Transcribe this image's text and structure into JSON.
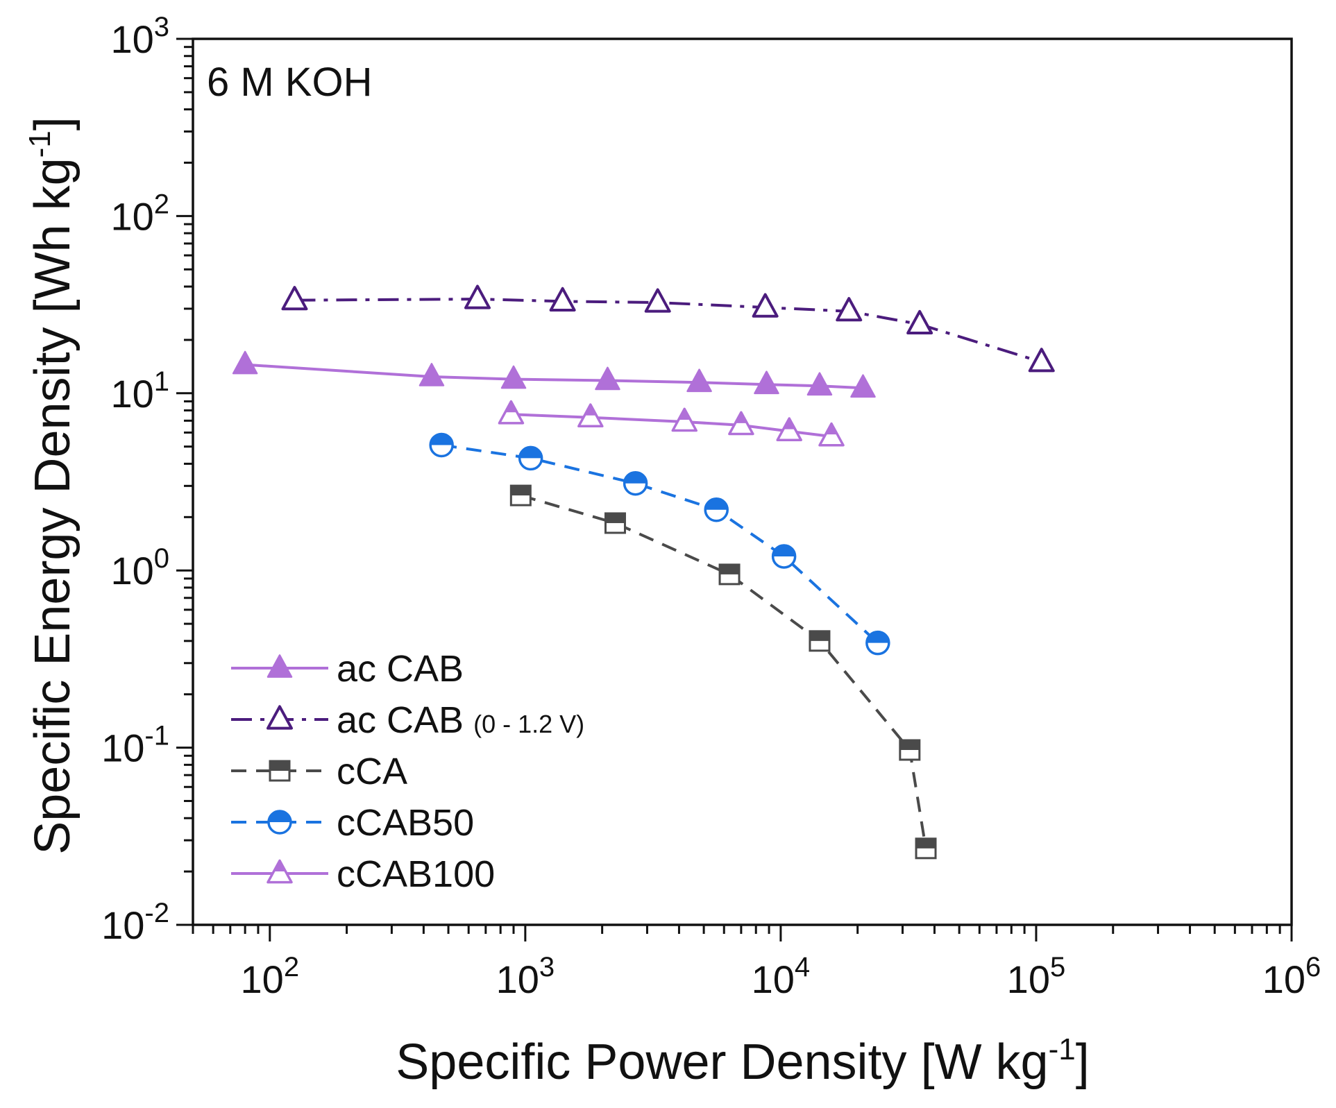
{
  "chart_data": {
    "type": "scatter",
    "xscale": "log",
    "yscale": "log",
    "xlim": [
      50,
      1000000
    ],
    "ylim": [
      0.01,
      1000
    ],
    "xlabel": "Specific Power Density [W kg",
    "xlabel_sup": "-1",
    "xlabel_end": "]",
    "ylabel": "Specific Energy Density [Wh kg",
    "ylabel_sup": "-1",
    "ylabel_end": "]",
    "annotation": "6 M KOH",
    "legend_position": "bottom-left",
    "x_ticks": [
      {
        "value": 100,
        "base": "10",
        "exp": "2"
      },
      {
        "value": 1000,
        "base": "10",
        "exp": "3"
      },
      {
        "value": 10000,
        "base": "10",
        "exp": "4"
      },
      {
        "value": 100000,
        "base": "10",
        "exp": "5"
      },
      {
        "value": 1000000,
        "base": "10",
        "exp": "6"
      }
    ],
    "y_ticks": [
      {
        "value": 0.01,
        "base": "10",
        "exp": "-2"
      },
      {
        "value": 0.1,
        "base": "10",
        "exp": "-1"
      },
      {
        "value": 1,
        "base": "10",
        "exp": "0"
      },
      {
        "value": 10,
        "base": "10",
        "exp": "1"
      },
      {
        "value": 100,
        "base": "10",
        "exp": "2"
      },
      {
        "value": 1000,
        "base": "10",
        "exp": "3"
      }
    ],
    "series": [
      {
        "name": "ac CAB",
        "name_suffix": "",
        "color": "#b070d8",
        "line_style": "solid",
        "marker": "triangle-filled",
        "x": [
          80,
          430,
          900,
          2100,
          4800,
          8800,
          14200,
          21000
        ],
        "y": [
          14.5,
          12.4,
          12.0,
          11.8,
          11.5,
          11.2,
          11.0,
          10.7
        ]
      },
      {
        "name": "ac CAB",
        "name_suffix": "(0 - 1.2 V)",
        "color": "#4b1c7d",
        "line_style": "dashdot",
        "marker": "triangle-open",
        "x": [
          125,
          650,
          1400,
          3300,
          8700,
          18500,
          35000,
          105000
        ],
        "y": [
          33.5,
          34.0,
          33.0,
          32.5,
          30.5,
          29.0,
          24.5,
          15.0
        ]
      },
      {
        "name": "cCA",
        "name_suffix": "",
        "color": "#4a4a4a",
        "line_style": "dashed",
        "marker": "square-half",
        "x": [
          960,
          2250,
          6300,
          14200,
          32000,
          37000
        ],
        "y": [
          2.65,
          1.85,
          0.95,
          0.4,
          0.097,
          0.027
        ]
      },
      {
        "name": "cCAB50",
        "name_suffix": "",
        "color": "#1a73e0",
        "line_style": "dashed",
        "marker": "circle-half",
        "x": [
          470,
          1050,
          2700,
          5600,
          10300,
          24000
        ],
        "y": [
          5.1,
          4.3,
          3.1,
          2.2,
          1.2,
          0.39
        ]
      },
      {
        "name": "cCAB100",
        "name_suffix": "",
        "color": "#b070d8",
        "line_style": "solid",
        "marker": "triangle-half",
        "x": [
          880,
          1800,
          4200,
          7000,
          10800,
          15800
        ],
        "y": [
          7.6,
          7.3,
          6.9,
          6.6,
          6.1,
          5.7
        ]
      }
    ]
  }
}
